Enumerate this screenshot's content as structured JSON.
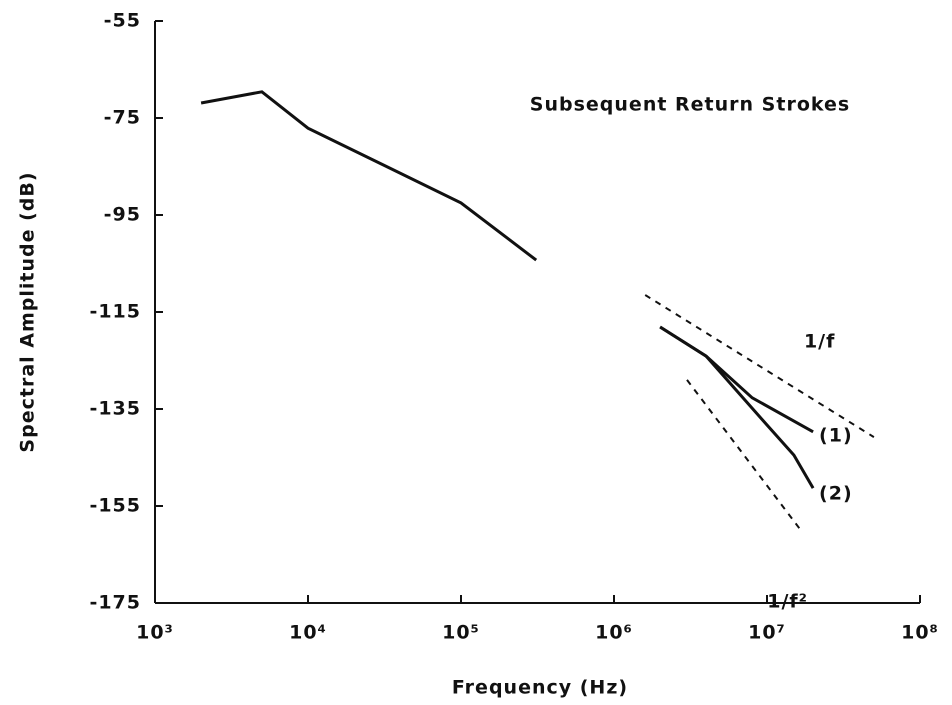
{
  "chart_data": {
    "type": "line",
    "annotation": "Subsequent Return Strokes",
    "xlabel": "Frequency (Hz)",
    "ylabel": "Spectral Amplitude (dB)",
    "xscale": "log",
    "xlim": [
      1000,
      100000000
    ],
    "xticks": [
      {
        "value": 1000,
        "label": "10³"
      },
      {
        "value": 10000,
        "label": "10⁴"
      },
      {
        "value": 100000,
        "label": "10⁵"
      },
      {
        "value": 1000000,
        "label": "10⁶"
      },
      {
        "value": 10000000,
        "label": "10⁷"
      },
      {
        "value": 100000000,
        "label": "10⁸"
      }
    ],
    "ylim": [
      -175,
      -55
    ],
    "yticks": [
      -55,
      -75,
      -95,
      -115,
      -135,
      -155,
      -175
    ],
    "series": [
      {
        "color": "#111111",
        "style": "solid",
        "x": [
          2000,
          5000,
          10000,
          100000,
          310000
        ],
        "values": [
          -71.9,
          -69.6,
          -77.1,
          -92.5,
          -104.3
        ]
      },
      {
        "name": "(1)",
        "color": "#111111",
        "style": "solid",
        "x": [
          2000000,
          4000000,
          8000000,
          20000000
        ],
        "values": [
          -118.1,
          -124.1,
          -132.7,
          -139.7
        ]
      },
      {
        "name": "(2)",
        "color": "#111111",
        "style": "solid",
        "x": [
          2000000,
          4000000,
          10000000,
          15000000,
          20000000
        ],
        "values": [
          -118.1,
          -124.1,
          -138.3,
          -144.5,
          -151.3
        ]
      },
      {
        "name": "1/f",
        "color": "#111111",
        "style": "dashed",
        "x": [
          1600000,
          50000000
        ],
        "values": [
          -111.5,
          -140.8
        ]
      },
      {
        "name": "1/f²",
        "color": "#111111",
        "style": "dashed",
        "x": [
          3000000,
          17000000
        ],
        "values": [
          -129.0,
          -160.4
        ]
      }
    ]
  }
}
